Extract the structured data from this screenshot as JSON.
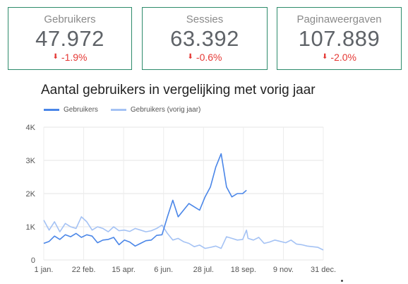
{
  "kpis": [
    {
      "label": "Gebruikers",
      "value": "47.972",
      "delta": "-1.9%"
    },
    {
      "label": "Sessies",
      "value": "63.392",
      "delta": "-0.6%"
    },
    {
      "label": "Paginaweergaven",
      "value": "107.889",
      "delta": "-2.0%"
    }
  ],
  "colors": {
    "current": "#4a86e8",
    "previous": "#a4c2f4",
    "delta": "#e53935",
    "border": "#2e8b6b"
  },
  "icons": {
    "delta": "arrow-down-icon"
  },
  "chart_data": {
    "type": "line",
    "title": "Aantal gebruikers in vergelijking met vorig jaar",
    "xlabel": "",
    "ylabel": "",
    "ylim": [
      0,
      4000
    ],
    "y_ticks": [
      0,
      1000,
      2000,
      3000,
      4000
    ],
    "y_tick_labels": [
      "0",
      "1K",
      "2K",
      "3K",
      "4K"
    ],
    "x_ticks": [
      1,
      53,
      105,
      157,
      209,
      261,
      313,
      365
    ],
    "x_tick_labels": [
      "1 jan.",
      "22 feb.",
      "15 apr.",
      "6 jun.",
      "28 jul.",
      "18 sep.",
      "9 nov.",
      "31 dec."
    ],
    "grid": true,
    "legend": "top-left",
    "series": [
      {
        "name": "Gebruikers",
        "color": "#4a86e8",
        "x": [
          1,
          8,
          15,
          22,
          29,
          36,
          43,
          50,
          57,
          64,
          71,
          78,
          85,
          92,
          99,
          106,
          113,
          120,
          127,
          134,
          141,
          148,
          155,
          162,
          169,
          176,
          183,
          190,
          197,
          204,
          211,
          218,
          225,
          232,
          239,
          246,
          253,
          260,
          265
        ],
        "y": [
          500,
          560,
          720,
          620,
          760,
          700,
          800,
          680,
          760,
          720,
          520,
          600,
          620,
          680,
          460,
          600,
          540,
          420,
          500,
          580,
          600,
          740,
          760,
          1300,
          1800,
          1300,
          1500,
          1700,
          1600,
          1500,
          1900,
          2200,
          2800,
          3200,
          2200,
          1900,
          2000,
          2000,
          2100
        ]
      },
      {
        "name": "Gebruikers (vorig jaar)",
        "color": "#a4c2f4",
        "x": [
          1,
          8,
          15,
          22,
          29,
          36,
          43,
          50,
          57,
          64,
          71,
          78,
          85,
          92,
          99,
          106,
          113,
          120,
          127,
          134,
          141,
          148,
          155,
          162,
          169,
          176,
          183,
          190,
          197,
          204,
          211,
          218,
          225,
          232,
          239,
          246,
          253,
          260,
          265,
          267,
          274,
          281,
          288,
          295,
          302,
          309,
          316,
          323,
          330,
          337,
          344,
          351,
          358,
          365
        ],
        "y": [
          1200,
          900,
          1150,
          850,
          1100,
          1000,
          950,
          1300,
          1150,
          900,
          1000,
          950,
          850,
          1000,
          880,
          900,
          860,
          950,
          900,
          850,
          880,
          950,
          1050,
          800,
          600,
          650,
          550,
          500,
          400,
          450,
          350,
          380,
          420,
          350,
          700,
          650,
          600,
          620,
          900,
          650,
          600,
          680,
          500,
          540,
          600,
          560,
          520,
          600,
          480,
          460,
          420,
          400,
          380,
          300
        ]
      }
    ]
  }
}
